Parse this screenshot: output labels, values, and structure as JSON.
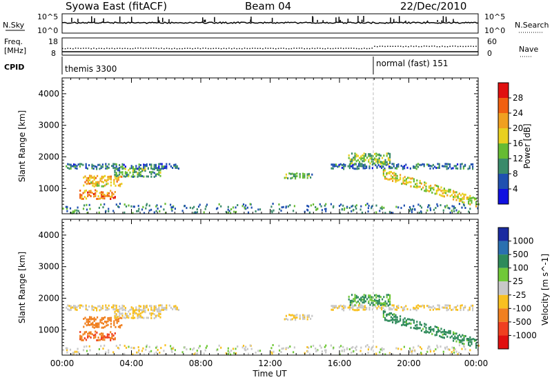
{
  "header": {
    "station": "Syowa East (fitACF)",
    "beam": "Beam 04",
    "date": "22/Dec/2010"
  },
  "side_labels": {
    "nsky": "N.Sky",
    "freq_line1": "Freq.",
    "freq_line2": "[MHz]",
    "cpid": "CPID",
    "nsearch": "N.Search",
    "nave": "Nave"
  },
  "noise_panel": {
    "y_ticks_left": [
      "10^5",
      "10^0"
    ],
    "y_ticks_right": [
      "10^5",
      "10^0"
    ]
  },
  "freq_panel": {
    "y_ticks_left": [
      "18",
      "8"
    ],
    "y_ticks_right": [
      "60",
      "0"
    ]
  },
  "cpid_panel": {
    "segments": [
      {
        "label": "themis 3300",
        "start_hour": 0,
        "end_hour": 18
      },
      {
        "label": "normal (fast) 151",
        "start_hour": 18,
        "end_hour": 24
      }
    ]
  },
  "axes": {
    "ylabel": "Slant Range [km]",
    "xlabel": "Time UT",
    "x_ticks": [
      "00:00",
      "04:00",
      "08:00",
      "12:00",
      "16:00",
      "20:00",
      "00:00"
    ],
    "y_ticks": [
      "1000",
      "2000",
      "3000",
      "4000"
    ]
  },
  "power_colorbar": {
    "title": "Power [dB]",
    "ticks": [
      "4",
      "8",
      "12",
      "16",
      "20",
      "24",
      "28"
    ],
    "colors": [
      "#1010e0",
      "#2050b0",
      "#3a8a6a",
      "#66bb33",
      "#e8d020",
      "#f0a020",
      "#f06010",
      "#e01010"
    ]
  },
  "velocity_colorbar": {
    "title": "Velocity [m s^-1]",
    "ticks": [
      "1000",
      "500",
      "100",
      "25",
      "-25",
      "-100",
      "-500",
      "-1000"
    ],
    "colors": [
      "#1a2aa0",
      "#2a70b0",
      "#2e8a5a",
      "#70c838",
      "#c8c8c8",
      "#f8c020",
      "#f08020",
      "#f04020",
      "#e01010"
    ]
  },
  "chart_data": {
    "type": "heatmap",
    "x_range_hours": [
      0,
      24
    ],
    "y_range_km": [
      200,
      4500
    ],
    "panels": [
      "power",
      "velocity"
    ],
    "echo_regions": [
      {
        "t_start": 0.2,
        "t_end": 6.8,
        "r_start": 1650,
        "r_end": 1850,
        "power_db": 8,
        "velocity": -25
      },
      {
        "t_start": 1.2,
        "t_end": 3.5,
        "r_start": 1100,
        "r_end": 1500,
        "power_db": 20,
        "velocity": -300
      },
      {
        "t_start": 1.0,
        "t_end": 3.2,
        "r_start": 700,
        "r_end": 1000,
        "power_db": 24,
        "velocity": -400
      },
      {
        "t_start": 3.0,
        "t_end": 5.8,
        "r_start": 1400,
        "r_end": 1700,
        "power_db": 12,
        "velocity": -25
      },
      {
        "t_start": 12.8,
        "t_end": 14.5,
        "r_start": 1350,
        "r_end": 1550,
        "power_db": 12,
        "velocity": -25
      },
      {
        "t_start": 15.5,
        "t_end": 23.8,
        "r_start": 1650,
        "r_end": 1850,
        "power_db": 8,
        "velocity": -25
      },
      {
        "t_start": 16.5,
        "t_end": 19.0,
        "r_start": 1800,
        "r_end": 2200,
        "power_db": 14,
        "velocity": 100
      },
      {
        "t_start": 18.5,
        "t_end": 24.0,
        "r_start": 500,
        "r_end": 1500,
        "power_db": 18,
        "velocity": 200
      }
    ]
  }
}
